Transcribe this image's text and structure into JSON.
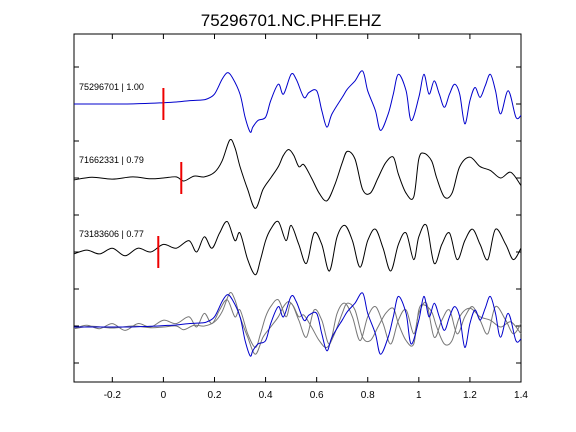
{
  "chart_data": {
    "type": "line",
    "title": "75296701.NC.PHF.EHZ",
    "xlabel": "",
    "ylabel": "",
    "xlim": [
      -0.35,
      1.4
    ],
    "x_ticks": [
      "-0.2",
      "0",
      "0.2",
      "0.4",
      "0.6",
      "0.8",
      "1",
      "1.2",
      "1.4"
    ],
    "x_tick_values": [
      -0.2,
      0,
      0.2,
      0.4,
      0.6,
      0.8,
      1.0,
      1.2,
      1.4
    ],
    "grid": false,
    "colors": {
      "master": "#0000cc",
      "other": "#000000",
      "overlay_other": "#777777",
      "pick": "#ee0000"
    },
    "traces": [
      {
        "label": "75296701 | 1.00",
        "pick_time": 0.0,
        "color": "#0000cc",
        "x": [
          -0.35,
          -0.25,
          -0.15,
          -0.05,
          0.0,
          0.05,
          0.1,
          0.15,
          0.17,
          0.2,
          0.23,
          0.25,
          0.27,
          0.3,
          0.32,
          0.34,
          0.35,
          0.37,
          0.4,
          0.42,
          0.45,
          0.47,
          0.5,
          0.52,
          0.55,
          0.57,
          0.6,
          0.62,
          0.64,
          0.66,
          0.7,
          0.72,
          0.75,
          0.78,
          0.8,
          0.83,
          0.85,
          0.88,
          0.9,
          0.92,
          0.95,
          0.97,
          1.0,
          1.02,
          1.04,
          1.06,
          1.08,
          1.1,
          1.12,
          1.14,
          1.16,
          1.18,
          1.2,
          1.22,
          1.24,
          1.26,
          1.28,
          1.3,
          1.32,
          1.35,
          1.38,
          1.4
        ],
        "y": [
          0.0,
          0.0,
          0.0,
          0.02,
          0.04,
          0.06,
          0.1,
          0.12,
          0.15,
          0.3,
          0.75,
          0.95,
          0.8,
          0.3,
          -0.4,
          -0.85,
          -0.7,
          -0.5,
          -0.4,
          0.1,
          0.6,
          0.3,
          0.9,
          0.75,
          0.2,
          0.35,
          0.4,
          -0.2,
          -0.7,
          -0.3,
          0.2,
          0.45,
          0.7,
          1.0,
          0.4,
          -0.2,
          -0.8,
          -0.3,
          0.3,
          0.9,
          0.4,
          -0.5,
          0.2,
          0.9,
          0.3,
          0.7,
          0.3,
          -0.1,
          0.3,
          0.6,
          0.3,
          -0.6,
          0.1,
          0.5,
          0.2,
          0.55,
          0.9,
          0.4,
          -0.3,
          0.4,
          -0.4,
          -0.35
        ]
      },
      {
        "label": "71662331 | 0.79",
        "pick_time": 0.07,
        "color": "#000000",
        "x": [
          -0.35,
          -0.28,
          -0.2,
          -0.12,
          -0.05,
          0.0,
          0.05,
          0.08,
          0.12,
          0.16,
          0.2,
          0.23,
          0.26,
          0.28,
          0.3,
          0.33,
          0.36,
          0.39,
          0.42,
          0.45,
          0.47,
          0.49,
          0.51,
          0.53,
          0.55,
          0.58,
          0.61,
          0.64,
          0.67,
          0.7,
          0.72,
          0.75,
          0.78,
          0.81,
          0.84,
          0.87,
          0.9,
          0.92,
          0.95,
          0.98,
          1.0,
          1.02,
          1.05,
          1.07,
          1.1,
          1.13,
          1.16,
          1.2,
          1.24,
          1.28,
          1.32,
          1.36,
          1.4
        ],
        "y": [
          -0.05,
          0.02,
          -0.03,
          0.03,
          -0.02,
          0.0,
          0.03,
          -0.08,
          0.05,
          0.03,
          0.15,
          0.45,
          1.0,
          0.8,
          0.3,
          -0.3,
          -0.8,
          -0.3,
          0.0,
          0.3,
          0.6,
          0.75,
          0.6,
          0.3,
          0.35,
          0.0,
          -0.4,
          -0.6,
          -0.2,
          0.4,
          0.7,
          0.5,
          -0.3,
          -0.4,
          0.0,
          0.4,
          0.55,
          0.1,
          -0.4,
          -0.5,
          0.5,
          0.65,
          0.45,
          0.0,
          -0.5,
          -0.4,
          0.3,
          0.55,
          0.3,
          0.2,
          0.0,
          0.15,
          -0.2
        ]
      },
      {
        "label": "73183606 | 0.77",
        "pick_time": -0.02,
        "color": "#000000",
        "x": [
          -0.35,
          -0.3,
          -0.25,
          -0.2,
          -0.15,
          -0.1,
          -0.05,
          0.0,
          0.05,
          0.1,
          0.13,
          0.16,
          0.19,
          0.22,
          0.25,
          0.28,
          0.3,
          0.33,
          0.36,
          0.38,
          0.4,
          0.42,
          0.45,
          0.48,
          0.5,
          0.53,
          0.56,
          0.59,
          0.62,
          0.65,
          0.68,
          0.71,
          0.74,
          0.77,
          0.8,
          0.83,
          0.86,
          0.89,
          0.92,
          0.95,
          0.98,
          1.0,
          1.03,
          1.06,
          1.09,
          1.12,
          1.15,
          1.18,
          1.21,
          1.24,
          1.27,
          1.3,
          1.34,
          1.37,
          1.4
        ],
        "y": [
          -0.05,
          0.05,
          -0.05,
          0.1,
          -0.1,
          0.1,
          0.0,
          0.2,
          0.1,
          0.3,
          0.0,
          0.4,
          0.1,
          0.5,
          0.8,
          0.3,
          0.5,
          -0.2,
          -0.6,
          -0.2,
          0.3,
          0.6,
          0.8,
          0.3,
          0.7,
          0.2,
          -0.3,
          0.5,
          0.2,
          -0.5,
          0.4,
          0.7,
          0.3,
          -0.4,
          0.3,
          0.6,
          0.1,
          -0.5,
          0.2,
          0.5,
          -0.2,
          0.4,
          0.7,
          -0.3,
          0.2,
          0.5,
          -0.2,
          0.3,
          0.6,
          0.2,
          -0.2,
          0.6,
          0.2,
          -0.2,
          0.1
        ]
      }
    ]
  }
}
